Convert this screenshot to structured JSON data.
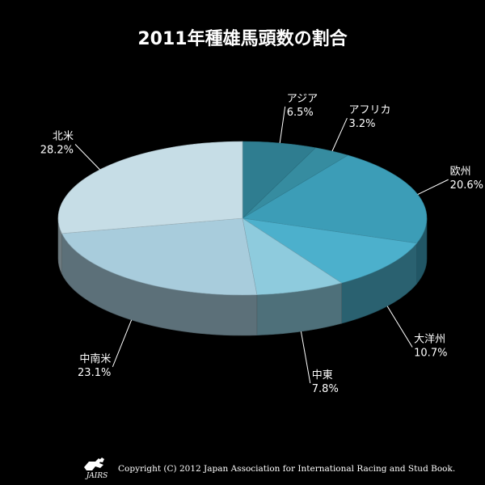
{
  "chart_data": {
    "type": "pie",
    "title": "2011年種雄馬頭数の割合",
    "slices": [
      {
        "label": "アジア",
        "value": 6.5,
        "display": "6.5%",
        "color": "#2f7d90"
      },
      {
        "label": "アフリカ",
        "value": 3.2,
        "display": "3.2%",
        "color": "#368ca0"
      },
      {
        "label": "欧州",
        "value": 20.6,
        "display": "20.6%",
        "color": "#3c9db7"
      },
      {
        "label": "大洋州",
        "value": 10.7,
        "display": "10.7%",
        "color": "#4cb0cc"
      },
      {
        "label": "中東",
        "value": 7.8,
        "display": "7.8%",
        "color": "#8ecbdd"
      },
      {
        "label": "中南米",
        "value": 23.1,
        "display": "23.1%",
        "color": "#a8ccdc"
      },
      {
        "label": "北米",
        "value": 28.2,
        "display": "28.2%",
        "color": "#c6dde6"
      }
    ]
  },
  "footer": {
    "copyright": "Copyright (C) 2012 Japan Association for International Racing and Stud Book.",
    "logo_text": "JAIRS"
  }
}
